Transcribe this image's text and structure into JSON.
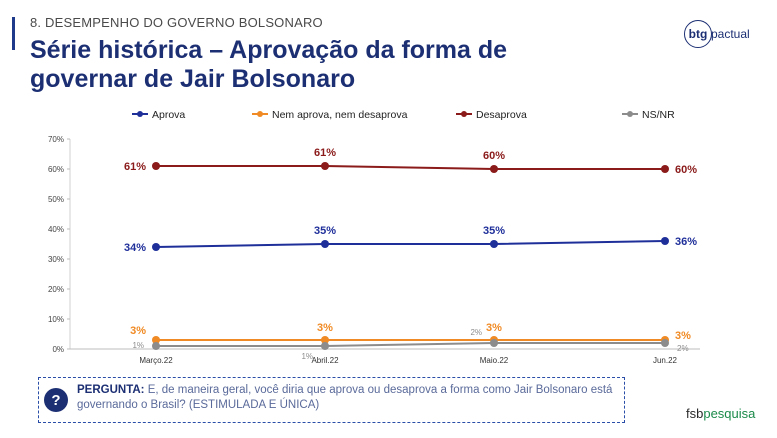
{
  "header": {
    "section_label": "8. DESEMPENHO DO GOVERNO BOLSONARO",
    "title": "Série histórica – Aprovação da forma de governar de Jair Bolsonaro"
  },
  "logo_btg": {
    "mark": "btg",
    "text": "pactual"
  },
  "logo_fsb": {
    "prefix": "fsb",
    "suffix": "pesquisa"
  },
  "question": {
    "label": "PERGUNTA:",
    "text": "E, de maneira geral, você diria que aprova ou desaprova a forma como Jair Bolsonaro está governando o Brasil? (ESTIMULADA E ÚNICA)",
    "icon": "question-icon"
  },
  "chart_data": {
    "type": "line",
    "categories": [
      "Março.22",
      "Abril.22",
      "Maio.22",
      "Jun.22"
    ],
    "ylim": [
      0,
      70
    ],
    "yticks": [
      "0%",
      "10%",
      "20%",
      "30%",
      "40%",
      "50%",
      "60%",
      "70%"
    ],
    "legend_position": "top",
    "series": [
      {
        "name": "Aprova",
        "color": "#1f2f9a",
        "values": [
          34,
          35,
          35,
          36
        ],
        "labels": [
          "34%",
          "35%",
          "35%",
          "36%"
        ]
      },
      {
        "name": "Nem aprova, nem desaprova",
        "color": "#f08a24",
        "values": [
          3,
          3,
          3,
          3
        ],
        "labels": [
          "3%",
          "3%",
          "3%",
          "3%"
        ]
      },
      {
        "name": "Desaprova",
        "color": "#8b1a1a",
        "values": [
          61,
          61,
          60,
          60
        ],
        "labels": [
          "61%",
          "61%",
          "60%",
          "60%"
        ]
      },
      {
        "name": "NS/NR",
        "color": "#8c8c8c",
        "values": [
          1,
          1,
          2,
          2
        ],
        "labels": [
          "1%",
          "1%",
          "2%",
          "2%"
        ]
      }
    ]
  }
}
